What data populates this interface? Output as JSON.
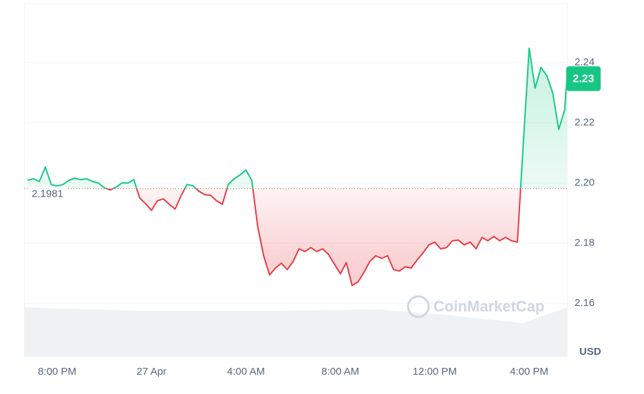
{
  "chart_data": {
    "type": "line",
    "x": [
      18.75,
      19.0,
      19.25,
      19.5,
      19.75,
      20.0,
      20.25,
      20.5,
      20.75,
      21.0,
      21.25,
      21.5,
      21.75,
      22.0,
      22.25,
      22.5,
      22.75,
      23.0,
      23.25,
      23.5,
      23.75,
      24.0,
      24.25,
      24.5,
      24.75,
      25.0,
      25.25,
      25.5,
      25.75,
      26.0,
      26.25,
      26.5,
      26.75,
      27.0,
      27.25,
      27.5,
      27.75,
      28.0,
      28.25,
      28.5,
      28.75,
      29.0,
      29.25,
      29.5,
      29.75,
      30.0,
      30.25,
      30.5,
      30.75,
      31.0,
      31.25,
      31.5,
      31.75,
      32.0,
      32.25,
      32.5,
      32.75,
      33.0,
      33.25,
      33.5,
      33.75,
      34.0,
      34.25,
      34.5,
      34.75,
      35.0,
      35.25,
      35.5,
      35.75,
      36.0,
      36.25,
      36.5,
      36.75,
      37.0,
      37.25,
      37.5,
      37.75,
      38.0,
      38.25,
      38.5,
      38.75,
      39.0,
      39.25,
      39.5,
      39.75,
      40.0,
      40.25,
      40.5,
      40.75,
      41.0,
      41.25,
      41.5,
      41.6
    ],
    "values": [
      2.2009,
      2.2014,
      2.2005,
      2.2053,
      2.1995,
      2.199,
      2.1995,
      2.2009,
      2.2016,
      2.2011,
      2.2014,
      2.2005,
      2.2,
      2.1984,
      2.1977,
      2.1986,
      2.2,
      2.2,
      2.2011,
      2.195,
      2.1931,
      2.1909,
      2.1941,
      2.1947,
      2.1929,
      2.1913,
      2.1957,
      2.1995,
      2.1991,
      2.1973,
      2.1961,
      2.1959,
      2.1941,
      2.1929,
      2.1995,
      2.2014,
      2.2027,
      2.2043,
      2.2009,
      2.1854,
      2.1758,
      2.1694,
      2.1717,
      2.1733,
      2.1712,
      2.1739,
      2.1781,
      2.1772,
      2.1785,
      2.1772,
      2.1781,
      2.1762,
      2.173,
      2.1698,
      2.1735,
      2.1659,
      2.1671,
      2.1703,
      2.1739,
      2.1758,
      2.1749,
      2.1758,
      2.1712,
      2.1707,
      2.1721,
      2.1717,
      2.1744,
      2.1767,
      2.1794,
      2.1803,
      2.1781,
      2.1785,
      2.1808,
      2.181,
      2.1794,
      2.1803,
      2.1781,
      2.1819,
      2.1808,
      2.1822,
      2.1808,
      2.1819,
      2.1808,
      2.1803,
      2.2128,
      2.2448,
      2.2315,
      2.2384,
      2.2357,
      2.2299,
      2.2178,
      2.2242,
      2.2347
    ],
    "up_color": "#16c784",
    "down_color": "#ea3943",
    "baseline": {
      "value": 2.1981,
      "label": "2.1981"
    },
    "current_price": {
      "value": 2.2347,
      "label": "2.23"
    },
    "xlim": [
      18.6,
      41.6
    ],
    "xticks": [
      {
        "value": 20,
        "label": "8:00 PM"
      },
      {
        "value": 24,
        "label": "27 Apr"
      },
      {
        "value": 28,
        "label": "4:00 AM"
      },
      {
        "value": 32,
        "label": "8:00 AM"
      },
      {
        "value": 36,
        "label": "12:00 PM"
      },
      {
        "value": 40,
        "label": "4:00 PM"
      }
    ],
    "ylim": [
      2.1424,
      2.2597
    ],
    "yticks": [
      2.16,
      2.18,
      {
        "value": 2.2,
        "label": "2.20"
      },
      2.22,
      2.24
    ],
    "y_unit": "USD",
    "watermark": "CoinMarketCap",
    "grid": true
  }
}
